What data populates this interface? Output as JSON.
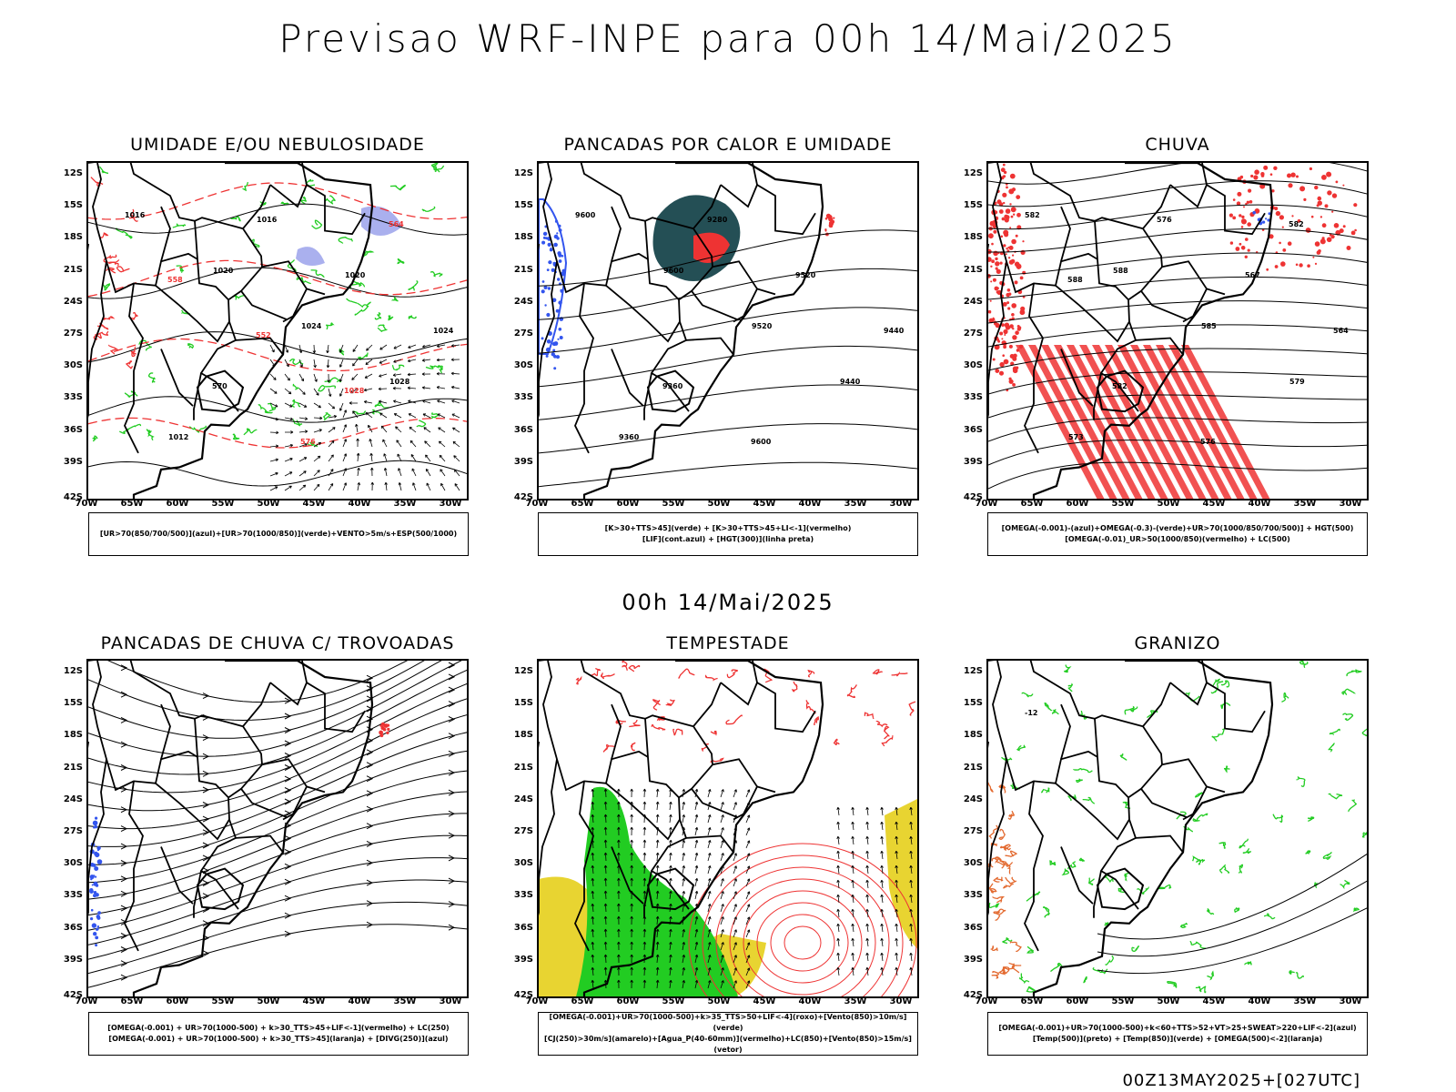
{
  "main_title": "Previsao WRF-INPE  para 00h 14/Mai/2025",
  "mid_title": "00h 14/Mai/2025",
  "footer": "00Z13MAY2025+[027UTC]",
  "lat_labels": [
    "12S",
    "15S",
    "18S",
    "21S",
    "24S",
    "27S",
    "30S",
    "33S",
    "36S",
    "39S",
    "42S"
  ],
  "lon_labels": [
    "70W",
    "65W",
    "60W",
    "55W",
    "50W",
    "45W",
    "40W",
    "35W",
    "30W"
  ],
  "colors": {
    "red": "#ee3333",
    "green": "#22cc22",
    "blue": "#3355ee",
    "teal": "#244f55",
    "yellow": "#e8d431",
    "lavender": "#aab0ee"
  },
  "panels": [
    {
      "id": "umidade",
      "title": "UMIDADE E/OU NEBULOSIDADE",
      "legend": [
        "[UR>70(850/700/500)](azul)+[UR>70(1000/850)](verde)+VENTO>5m/s+ESP(500/1000)"
      ],
      "contour_labels": [
        "1016",
        "1020",
        "1024",
        "1028",
        "1012",
        "1016",
        "1020",
        "1024",
        "570",
        "576",
        "564",
        "558",
        "552",
        "1028"
      ]
    },
    {
      "id": "pancadas_calor",
      "title": "PANCADAS POR CALOR E UMIDADE",
      "legend": [
        "[K>30+TTS>45](verde) + [K>30+TTS>45+LI<-1](vermelho)",
        "[LIF](cont.azul) + [HGT(300)](linha preta)"
      ],
      "contour_labels": [
        "9600",
        "9600",
        "9520",
        "9440",
        "9360",
        "9280",
        "9520",
        "9440",
        "9360",
        "9600"
      ]
    },
    {
      "id": "chuva",
      "title": "CHUVA",
      "legend": [
        "[OMEGA(-0.001)-(azul)+OMEGA(-0.3)-(verde)+UR>70(1000/850/700/500)] + HGT(500)",
        "[OMEGA(-0.01)_UR>50(1000/850)(vermelho) + LC(500)"
      ],
      "contour_labels": [
        "582",
        "588",
        "585",
        "579",
        "573",
        "576",
        "567",
        "564",
        "582",
        "576",
        "582",
        "588"
      ]
    },
    {
      "id": "trovoadas",
      "title": "PANCADAS DE CHUVA C/ TROVOADAS",
      "legend": [
        "[OMEGA(-0.001) + UR>70(1000-500) + k>30_TTS>45+LIF<-1](vermelho) + LC(250)",
        "[OMEGA(-0.001) + UR>70(1000-500) + k>30_TTS>45](laranja) + [DIVG(250)](azul)"
      ],
      "contour_labels": []
    },
    {
      "id": "tempestade",
      "title": "TEMPESTADE",
      "legend": [
        "[OMEGA(-0.001)+UR>70(1000-500)+k>35_TTS>50+LIF<-4](roxo)+[Vento(850)>10m/s](verde)",
        "[CJ(250)>30m/s](amarelo)+[Agua_P(40-60mm)](vermelho)+LC(850)+[Vento(850)>15m/s](vetor)"
      ],
      "contour_labels": []
    },
    {
      "id": "granizo",
      "title": "GRANIZO",
      "legend": [
        "[OMEGA(-0.001)+UR>70(1000-500)+k<60+TTS>52+VT>25+SWEAT>220+LIF<-2](azul)",
        "[Temp(500)](preto) + [Temp(850)](verde) + [OMEGA(500)<-2](laranja)"
      ],
      "contour_labels": [
        "-12"
      ]
    }
  ]
}
